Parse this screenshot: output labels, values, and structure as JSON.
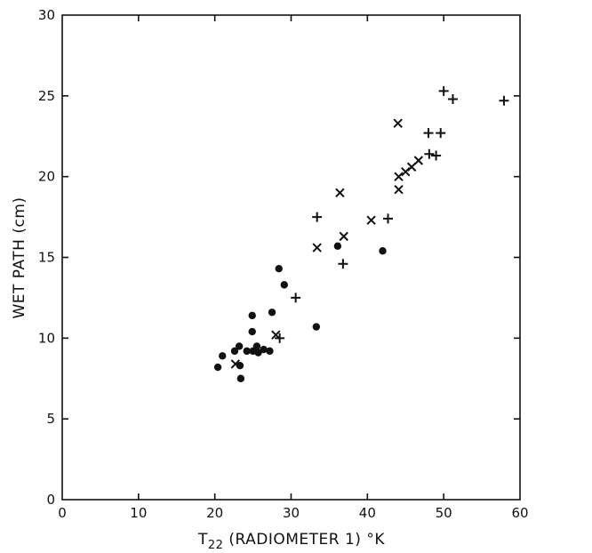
{
  "chart_data": {
    "type": "scatter",
    "title": "",
    "xlabel": {
      "prefix": "T",
      "subscript": "22",
      "suffix": " (RADIOMETER 1) °K"
    },
    "ylabel": "WET PATH (cm)",
    "xlim": [
      0,
      60
    ],
    "ylim": [
      0,
      30
    ],
    "xticks": [
      "0",
      "10",
      "20",
      "30",
      "40",
      "50",
      "60"
    ],
    "yticks": [
      "0",
      "5",
      "10",
      "15",
      "20",
      "25",
      "30"
    ],
    "grid": false,
    "series": [
      {
        "marker": "dot",
        "points": [
          [
            20.4,
            8.2
          ],
          [
            21.0,
            8.9
          ],
          [
            22.6,
            9.2
          ],
          [
            23.2,
            9.5
          ],
          [
            23.3,
            8.3
          ],
          [
            23.4,
            7.5
          ],
          [
            24.2,
            9.2
          ],
          [
            24.9,
            11.4
          ],
          [
            24.9,
            10.4
          ],
          [
            25.0,
            9.2
          ],
          [
            25.5,
            9.5
          ],
          [
            25.7,
            9.1
          ],
          [
            26.4,
            9.3
          ],
          [
            27.2,
            9.2
          ],
          [
            27.5,
            11.6
          ],
          [
            28.4,
            14.3
          ],
          [
            29.1,
            13.3
          ],
          [
            33.3,
            10.7
          ],
          [
            36.1,
            15.7
          ],
          [
            42.0,
            15.4
          ]
        ]
      },
      {
        "marker": "cross-x",
        "points": [
          [
            22.7,
            8.4
          ],
          [
            28.0,
            10.2
          ],
          [
            33.4,
            15.6
          ],
          [
            36.4,
            19.0
          ],
          [
            36.9,
            16.3
          ],
          [
            40.5,
            17.3
          ],
          [
            44.0,
            23.3
          ],
          [
            44.1,
            20.0
          ],
          [
            44.1,
            19.2
          ],
          [
            45.0,
            20.3
          ],
          [
            45.8,
            20.6
          ],
          [
            46.7,
            21.0
          ]
        ]
      },
      {
        "marker": "plus",
        "points": [
          [
            28.5,
            10.0
          ],
          [
            30.6,
            12.5
          ],
          [
            33.4,
            17.5
          ],
          [
            36.8,
            14.6
          ],
          [
            42.7,
            17.4
          ],
          [
            48.0,
            22.7
          ],
          [
            48.1,
            21.4
          ],
          [
            49.0,
            21.3
          ],
          [
            49.6,
            22.7
          ],
          [
            50.0,
            25.3
          ],
          [
            51.2,
            24.8
          ],
          [
            57.9,
            24.7
          ]
        ]
      }
    ]
  }
}
